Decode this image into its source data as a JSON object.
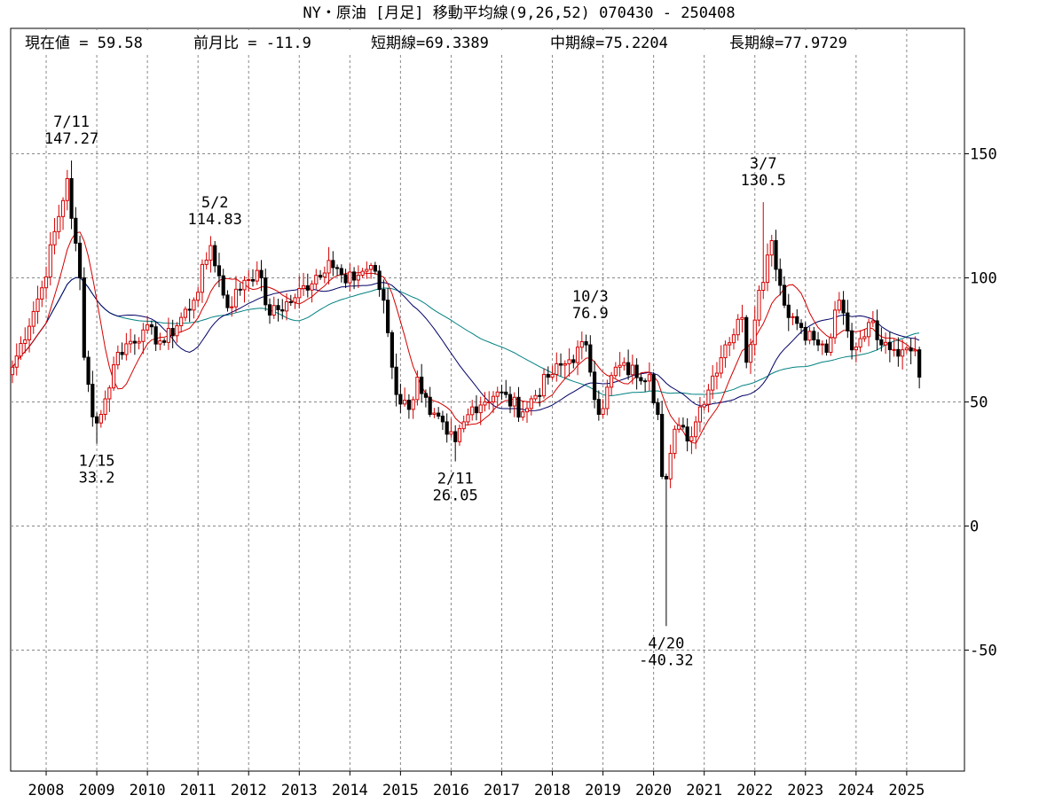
{
  "title": "NY・原油 [月足]  移動平均線(9,26,52)  070430 - 250408",
  "stats": {
    "current": "現在値 = 59.58",
    "change": "前月比 = -11.9",
    "short_ma": "短期線=69.3389",
    "mid_ma": "中期線=75.2204",
    "long_ma": "長期線=77.9729"
  },
  "colors": {
    "up_candle": "#d40000",
    "down_candle": "#000000",
    "short_ma": "#d40000",
    "mid_ma": "#000066",
    "long_ma": "#008080",
    "grid": "#888888"
  },
  "chart_data": {
    "type": "candlestick",
    "interval": "monthly",
    "x_range": [
      "2007-05",
      "2025-04"
    ],
    "ylim": [
      -95,
      195
    ],
    "yticks": [
      150,
      100,
      50,
      0,
      -50
    ],
    "xticks": [
      "2008",
      "2009",
      "2010",
      "2011",
      "2012",
      "2013",
      "2014",
      "2015",
      "2016",
      "2017",
      "2018",
      "2019",
      "2020",
      "2021",
      "2022",
      "2023",
      "2024",
      "2025"
    ],
    "grid": true,
    "y_axis_position": "right",
    "close_anchors": [
      [
        "2007-05",
        64
      ],
      [
        "2007-12",
        96
      ],
      [
        "2008-06",
        140
      ],
      [
        "2008-07",
        124
      ],
      [
        "2008-09",
        100
      ],
      [
        "2008-10",
        68
      ],
      [
        "2008-12",
        44
      ],
      [
        "2009-02",
        45
      ],
      [
        "2009-06",
        70
      ],
      [
        "2009-12",
        79
      ],
      [
        "2010-05",
        74
      ],
      [
        "2010-12",
        91
      ],
      [
        "2011-04",
        113
      ],
      [
        "2011-08",
        88
      ],
      [
        "2011-12",
        99
      ],
      [
        "2012-03",
        103
      ],
      [
        "2012-06",
        85
      ],
      [
        "2012-12",
        92
      ],
      [
        "2013-08",
        107
      ],
      [
        "2013-12",
        98
      ],
      [
        "2014-06",
        105
      ],
      [
        "2014-09",
        91
      ],
      [
        "2014-12",
        53
      ],
      [
        "2015-03",
        47
      ],
      [
        "2015-05",
        60
      ],
      [
        "2015-08",
        45
      ],
      [
        "2015-12",
        37
      ],
      [
        "2016-02",
        34
      ],
      [
        "2016-06",
        48
      ],
      [
        "2016-12",
        54
      ],
      [
        "2017-06",
        46
      ],
      [
        "2017-12",
        60
      ],
      [
        "2018-05",
        67
      ],
      [
        "2018-09",
        73
      ],
      [
        "2018-12",
        45
      ],
      [
        "2019-04",
        64
      ],
      [
        "2019-12",
        61
      ],
      [
        "2020-02",
        45
      ],
      [
        "2020-03",
        20
      ],
      [
        "2020-04",
        19
      ],
      [
        "2020-06",
        39
      ],
      [
        "2020-10",
        36
      ],
      [
        "2020-12",
        48
      ],
      [
        "2021-06",
        73
      ],
      [
        "2021-10",
        84
      ],
      [
        "2021-11",
        66
      ],
      [
        "2022-02",
        95
      ],
      [
        "2022-05",
        115
      ],
      [
        "2022-08",
        89
      ],
      [
        "2022-12",
        80
      ],
      [
        "2023-03",
        75
      ],
      [
        "2023-06",
        70
      ],
      [
        "2023-09",
        91
      ],
      [
        "2023-12",
        71
      ],
      [
        "2024-04",
        82
      ],
      [
        "2024-08",
        74
      ],
      [
        "2024-12",
        71
      ],
      [
        "2025-03",
        71
      ],
      [
        "2025-04",
        60
      ]
    ],
    "moving_averages": [
      {
        "name": "短期線",
        "period": 9,
        "last": 69.3389
      },
      {
        "name": "中期線",
        "period": 26,
        "last": 75.2204
      },
      {
        "name": "長期線",
        "period": 52,
        "last": 77.9729
      }
    ],
    "annotations": [
      {
        "date": "2008-07",
        "label": "7/11",
        "value": "147.27",
        "v": 147.27,
        "pos": "above"
      },
      {
        "date": "2009-01",
        "label": "1/15",
        "value": "33.2",
        "v": 33.2,
        "pos": "below"
      },
      {
        "date": "2011-05",
        "label": "5/2",
        "value": "114.83",
        "v": 114.83,
        "pos": "above"
      },
      {
        "date": "2016-02",
        "label": "2/11",
        "value": "26.05",
        "v": 26.05,
        "pos": "below"
      },
      {
        "date": "2018-10",
        "label": "10/3",
        "value": "76.9",
        "v": 76.9,
        "pos": "above"
      },
      {
        "date": "2020-04",
        "label": "4/20",
        "value": "-40.32",
        "v": -40.32,
        "pos": "below"
      },
      {
        "date": "2022-03",
        "label": "3/7",
        "value": "130.5",
        "v": 130.5,
        "pos": "above"
      }
    ]
  }
}
